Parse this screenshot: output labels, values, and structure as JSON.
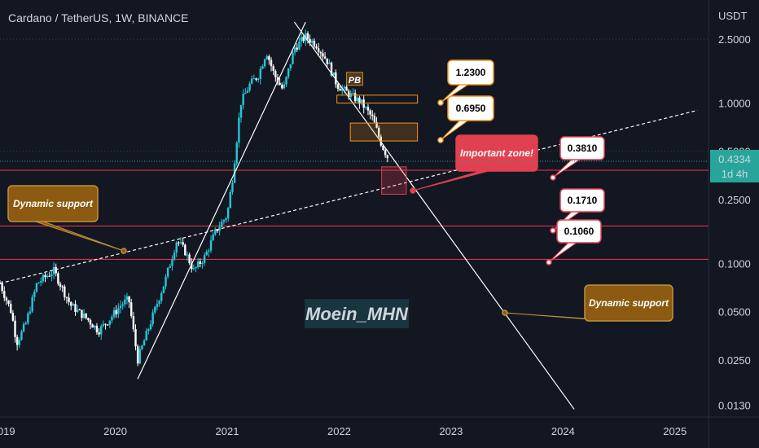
{
  "header": {
    "title": "Cardano / TetherUS, 1W, BINANCE",
    "currency": "USDT"
  },
  "price_badge": {
    "value": "0.4334",
    "countdown": "1d 4h",
    "color": "#26a69a"
  },
  "watermark": "Moein_MHN",
  "colors": {
    "background": "#131722",
    "up": "#26c6da",
    "down": "#ffffff",
    "pink_line": "#f23645",
    "orange": "#f7931a",
    "important": "#e04050",
    "note": "#8c5a10"
  },
  "chart_data": {
    "type": "candlestick",
    "title": "Cardano / TetherUS, 1W, BINANCE",
    "y_scale": "log",
    "y_ticks": [
      2.5,
      1.0,
      0.5,
      0.25,
      0.1,
      0.05,
      0.025,
      0.013
    ],
    "y_tick_labels": [
      "2.5000",
      "1.0000",
      "0.5000",
      "0.2500",
      "0.1000",
      "0.0500",
      "0.0250",
      "0.0130"
    ],
    "x_ticks": [
      "2019",
      "2020",
      "2021",
      "2022",
      "2023",
      "2024",
      "2025"
    ],
    "x_tick_values": [
      2019,
      2020,
      2021,
      2022,
      2023,
      2024,
      2025
    ],
    "x_range": [
      2018.97,
      2025.3
    ],
    "y_range": [
      0.011,
      4.0
    ],
    "anchor_path": [
      [
        2018.97,
        0.075
      ],
      [
        2019.07,
        0.05
      ],
      [
        2019.12,
        0.032
      ],
      [
        2019.2,
        0.042
      ],
      [
        2019.3,
        0.075
      ],
      [
        2019.45,
        0.09
      ],
      [
        2019.6,
        0.055
      ],
      [
        2019.75,
        0.045
      ],
      [
        2019.85,
        0.038
      ],
      [
        2019.95,
        0.045
      ],
      [
        2020.05,
        0.055
      ],
      [
        2020.12,
        0.06
      ],
      [
        2020.2,
        0.025
      ],
      [
        2020.3,
        0.04
      ],
      [
        2020.45,
        0.08
      ],
      [
        2020.55,
        0.14
      ],
      [
        2020.62,
        0.12
      ],
      [
        2020.7,
        0.09
      ],
      [
        2020.8,
        0.11
      ],
      [
        2020.9,
        0.16
      ],
      [
        2021.0,
        0.2
      ],
      [
        2021.05,
        0.35
      ],
      [
        2021.12,
        1.0
      ],
      [
        2021.2,
        1.3
      ],
      [
        2021.28,
        1.5
      ],
      [
        2021.35,
        2.1
      ],
      [
        2021.42,
        1.5
      ],
      [
        2021.5,
        1.2
      ],
      [
        2021.6,
        2.2
      ],
      [
        2021.7,
        2.6
      ],
      [
        2021.8,
        2.3
      ],
      [
        2021.9,
        1.8
      ],
      [
        2021.98,
        1.3
      ],
      [
        2022.08,
        1.15
      ],
      [
        2022.2,
        1.0
      ],
      [
        2022.3,
        0.8
      ],
      [
        2022.38,
        0.55
      ],
      [
        2022.45,
        0.4334
      ]
    ],
    "horizontal_levels": [
      0.381,
      0.171,
      0.106
    ],
    "annotations": {
      "callouts": [
        "1.2300",
        "0.6950",
        "0.3810",
        "0.1710",
        "0.1060"
      ],
      "important_zone": "Important zone!",
      "dynamic_support": "Dynamic support",
      "pb_label": "PB"
    },
    "drawings": {
      "rising_trendline": [
        [
          2020.2,
          0.019
        ],
        [
          2021.7,
          3.2
        ]
      ],
      "falling_trendline": [
        [
          2021.6,
          3.2
        ],
        [
          2024.1,
          0.0123
        ]
      ],
      "dashed_support": [
        [
          2018.97,
          0.075
        ],
        [
          2025.2,
          0.9
        ]
      ],
      "zones": [
        {
          "kind": "orange",
          "from": [
            2021.98,
            1.12
          ],
          "to": [
            2022.7,
            1.0
          ]
        },
        {
          "kind": "orange",
          "from": [
            2022.1,
            0.75
          ],
          "to": [
            2022.7,
            0.58
          ]
        },
        {
          "kind": "important",
          "from": [
            2022.38,
            0.4
          ],
          "to": [
            2022.6,
            0.27
          ]
        }
      ]
    }
  }
}
